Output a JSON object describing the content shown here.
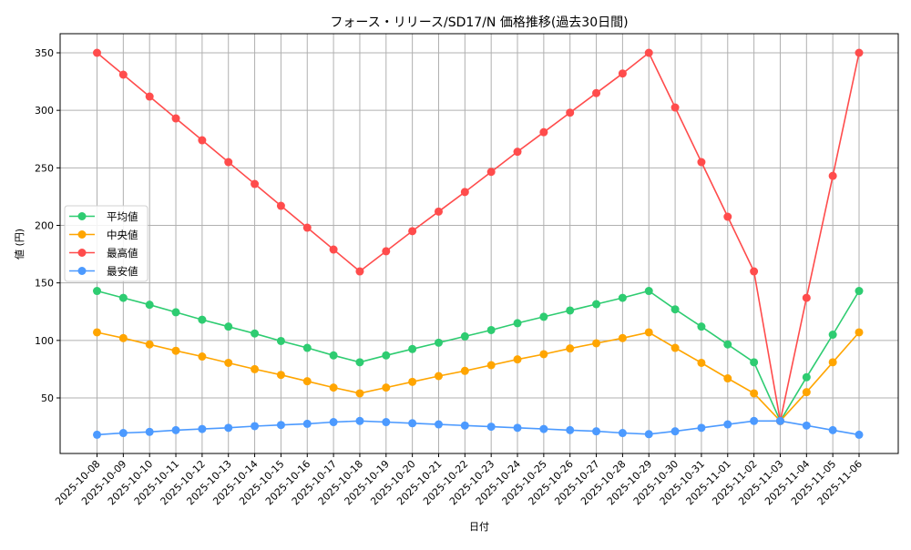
{
  "chart_data": {
    "type": "line",
    "title": "フォース・リリース/SD17/N 価格推移(過去30日間)",
    "xlabel": "日付",
    "ylabel": "値 (円)",
    "ylim": [
      0,
      365
    ],
    "yticks": [
      50,
      100,
      150,
      200,
      250,
      300,
      350
    ],
    "grid": true,
    "legend_position": "center left",
    "categories": [
      "2025-10-08",
      "2025-10-09",
      "2025-10-10",
      "2025-10-11",
      "2025-10-12",
      "2025-10-13",
      "2025-10-14",
      "2025-10-15",
      "2025-10-16",
      "2025-10-17",
      "2025-10-18",
      "2025-10-19",
      "2025-10-20",
      "2025-10-21",
      "2025-10-22",
      "2025-10-23",
      "2025-10-24",
      "2025-10-25",
      "2025-10-26",
      "2025-10-27",
      "2025-10-28",
      "2025-10-29",
      "2025-10-30",
      "2025-10-31",
      "2025-11-01",
      "2025-11-02",
      "2025-11-03",
      "2025-11-04",
      "2025-11-05",
      "2025-11-06"
    ],
    "series": [
      {
        "name": "平均値",
        "color": "#2ecc71",
        "values": [
          143,
          137,
          131,
          124.5,
          118,
          112,
          106,
          99.5,
          93.5,
          87,
          81,
          87,
          92.5,
          98,
          103.5,
          109,
          115,
          120.5,
          126,
          131.5,
          137,
          143,
          127,
          112,
          96.5,
          81,
          30,
          68,
          105,
          143
        ]
      },
      {
        "name": "中央値",
        "color": "#ffa500",
        "values": [
          107,
          102,
          96.5,
          91,
          86,
          80.5,
          75,
          70,
          64.5,
          59,
          54,
          59,
          64,
          69,
          73.5,
          78.5,
          83.5,
          88,
          93,
          97.5,
          102,
          107,
          93.5,
          80.5,
          67,
          54,
          30,
          55,
          81,
          107
        ]
      },
      {
        "name": "最高値",
        "color": "#ff4c4c",
        "values": [
          350,
          331,
          312,
          293,
          274,
          255,
          236,
          217,
          198,
          179,
          160,
          177.5,
          195,
          212,
          229,
          246.5,
          264,
          281,
          298,
          315,
          332,
          350,
          302.5,
          255,
          207.5,
          160,
          30,
          137,
          243,
          350
        ]
      },
      {
        "name": "最安値",
        "color": "#4c9aff",
        "values": [
          18,
          19.5,
          20.5,
          22,
          23,
          24,
          25.5,
          26.5,
          27.5,
          29,
          30,
          29,
          28,
          27,
          26,
          25,
          24,
          23,
          22,
          21,
          19.5,
          18.5,
          21,
          24,
          27,
          30,
          30,
          26,
          22,
          18
        ]
      }
    ]
  }
}
